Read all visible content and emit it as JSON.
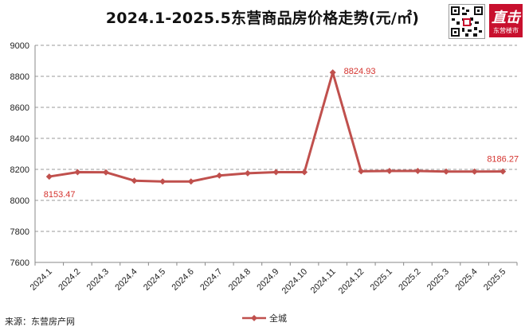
{
  "title": "2024.1-2025.5东营商品房价格走势(元/㎡)",
  "source": "来源：东营房产网",
  "logo": {
    "big": "直击",
    "small": "东营楼市"
  },
  "colors": {
    "line": "#c0504d",
    "grid": "#9a9a9a",
    "label": "#d4322d"
  },
  "chart_data": {
    "type": "line",
    "title": "2024.1-2025.5东营商品房价格走势(元/㎡)",
    "categories": [
      "2024.1",
      "2024.2",
      "2024.3",
      "2024.4",
      "2024.5",
      "2024.6",
      "2024.7",
      "2024.8",
      "2024.9",
      "2024.10",
      "2024.11",
      "2024.12",
      "2025.1",
      "2025.2",
      "2025.3",
      "2025.4",
      "2025.5"
    ],
    "series": [
      {
        "name": "全城",
        "values": [
          8153.47,
          8182,
          8181,
          8127,
          8122,
          8122,
          8160,
          8175,
          8182,
          8182,
          8824.93,
          8188,
          8190,
          8190,
          8186,
          8186,
          8186.27
        ]
      }
    ],
    "data_labels": [
      {
        "index": 0,
        "text": "8153.47"
      },
      {
        "index": 10,
        "text": "8824.93"
      },
      {
        "index": 16,
        "text": "8186.27"
      }
    ],
    "ylim": [
      7600,
      9000
    ],
    "yticks": [
      "7600",
      "7800",
      "8000",
      "8200",
      "8400",
      "8600",
      "8800",
      "9000"
    ],
    "grid": true,
    "legend": "bottom"
  }
}
